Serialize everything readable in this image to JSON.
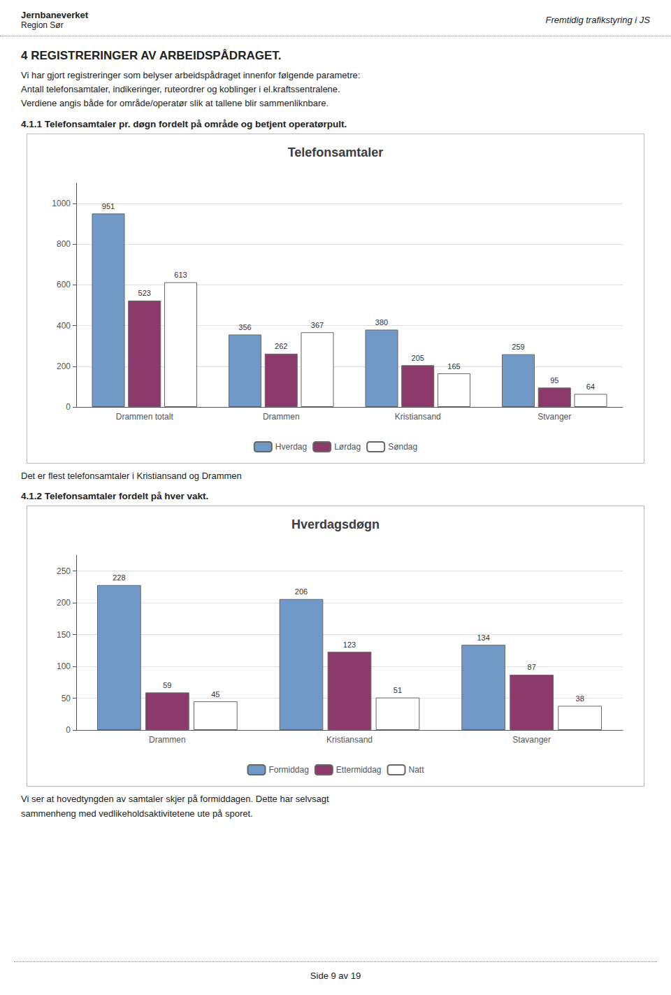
{
  "chart_data": [
    {
      "type": "bar",
      "title": "Telefonsamtaler",
      "annotations": [
        "Jernbaneverket",
        "Region Sør",
        "Fremtidig trafikstyring i JS",
        "4    REGISTRERINGER AV ARBEIDSPÅDRAGET.",
        "Vi har gjort registreringer som belyser arbeidspådraget innenfor følgende parametre:\nAntall telefonsamtaler, indikeringer, ruteordrer og koblinger i el.kraftssentralene.\nVerdiene angis både for område/operatør slik at tallene blir sammenliknbare.",
        "4.1.1  Telefonsamtaler pr. døgn fordelt på område og betjent operatørpult.",
        "Det er flest telefonsamtaler i Kristiansand og Drammen"
      ],
      "categories": [
        "Drammen totalt",
        "Drammen",
        "Kristiansand",
        "Stvanger"
      ],
      "series": [
        {
          "name": "Hverdag",
          "color": "#7099c8",
          "values": [
            951,
            356,
            380,
            259
          ]
        },
        {
          "name": "Lørdag",
          "color": "#8b3a6b",
          "values": [
            523,
            262,
            205,
            95
          ]
        },
        {
          "name": "Søndag",
          "color": "#ffffff",
          "values": [
            613,
            367,
            165,
            64
          ]
        }
      ],
      "ylim": [
        0,
        1100
      ],
      "yticks": [
        0,
        200,
        400,
        600,
        800,
        1000
      ],
      "grid": true,
      "legend": "bottom",
      "data_labels": true
    },
    {
      "type": "bar",
      "title": "Hverdagsdøgn",
      "annotations": [
        "4.1.2 Telefonsamtaler fordelt på hver vakt.",
        "Vi ser at hovedtyngden av samtaler skjer på formiddagen. Dette har selvsagt\nsammenheng med vedlikeholdsaktivitetene ute på sporet.",
        "Side 9 av 19"
      ],
      "categories": [
        "Drammen",
        "Kristiansand",
        "Stavanger"
      ],
      "series": [
        {
          "name": "Formiddag",
          "color": "#7099c8",
          "values": [
            228,
            206,
            134
          ]
        },
        {
          "name": "Ettermiddag",
          "color": "#8b3a6b",
          "values": [
            59,
            123,
            87
          ]
        },
        {
          "name": "Natt",
          "color": "#ffffff",
          "values": [
            45,
            51,
            38
          ]
        }
      ],
      "ylim": [
        0,
        275
      ],
      "yticks": [
        0,
        50,
        100,
        150,
        200,
        250
      ],
      "grid": true,
      "legend": "bottom",
      "data_labels": true
    }
  ]
}
